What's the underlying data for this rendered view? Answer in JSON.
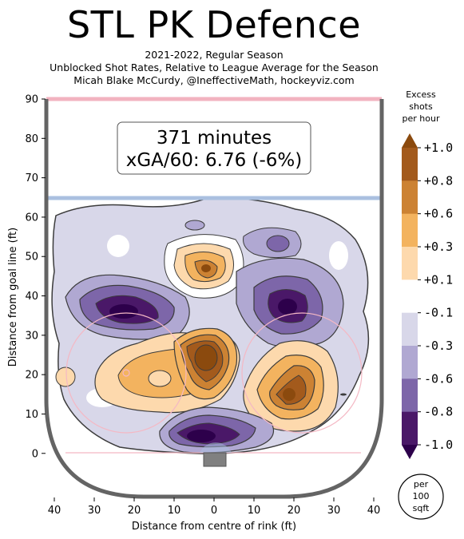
{
  "header": {
    "title": "STL PK Defence",
    "subtitle_lines": [
      "2021-2022, Regular Season",
      "Unblocked Shot Rates, Relative to League Average for the Season",
      "Micah Blake McCurdy, @IneffectiveMath, hockeyviz.com"
    ]
  },
  "annotation": {
    "line1": "371 minutes",
    "line2": "xGA/60: 6.76 (-6%)"
  },
  "colorbar": {
    "title_lines": [
      "Excess",
      "shots",
      "per hour"
    ],
    "ticks": [
      "+1.0",
      "+0.8",
      "+0.6",
      "+0.3",
      "+0.1",
      "-0.1",
      "-0.3",
      "-0.6",
      "-0.8",
      "-1.0"
    ],
    "colors": [
      "#8b4a0e",
      "#a35a1c",
      "#cc8233",
      "#f3b35f",
      "#fdd9ad",
      "#ffffff",
      "#d8d7e9",
      "#b0a8d2",
      "#7d66a9",
      "#4a1868",
      "#2d004b"
    ]
  },
  "unit_badge": {
    "lines": [
      "per",
      "100",
      "sqft"
    ]
  },
  "chart_data": {
    "type": "heatmap",
    "title": "STL PK Defence",
    "xlabel": "Distance from centre of rink (ft)",
    "ylabel": "Distance from goal line (ft)",
    "xlim": [
      42,
      -42
    ],
    "ylim": [
      -11,
      90
    ],
    "x_ticks": [
      40,
      30,
      20,
      10,
      0,
      10,
      20,
      30,
      40
    ],
    "x_tick_labels": [
      "40",
      "30",
      "20",
      "10",
      "0",
      "10",
      "20",
      "30",
      "40"
    ],
    "y_ticks": [
      0,
      10,
      20,
      30,
      40,
      50,
      60,
      70,
      80,
      90
    ],
    "y_tick_labels": [
      "0",
      "10",
      "20",
      "30",
      "40",
      "50",
      "60",
      "70",
      "80",
      "90"
    ],
    "levels": [
      -1.0,
      -0.8,
      -0.6,
      -0.3,
      -0.1,
      0.1,
      0.3,
      0.6,
      0.8,
      1.0
    ],
    "hotspots": [
      {
        "x": 0,
        "y": 24,
        "value": 1.0
      },
      {
        "x": -18,
        "y": 16,
        "value": 0.9
      },
      {
        "x": 21,
        "y": 20,
        "value": 0.5
      },
      {
        "x": 2,
        "y": 47,
        "value": 0.6
      },
      {
        "x": 24,
        "y": 36,
        "value": -0.9
      },
      {
        "x": -20,
        "y": 36,
        "value": -0.8
      },
      {
        "x": 3,
        "y": 3,
        "value": -1.0
      },
      {
        "x": -15,
        "y": 48,
        "value": -0.3
      },
      {
        "x": 23,
        "y": 42,
        "value": -0.2
      }
    ]
  }
}
